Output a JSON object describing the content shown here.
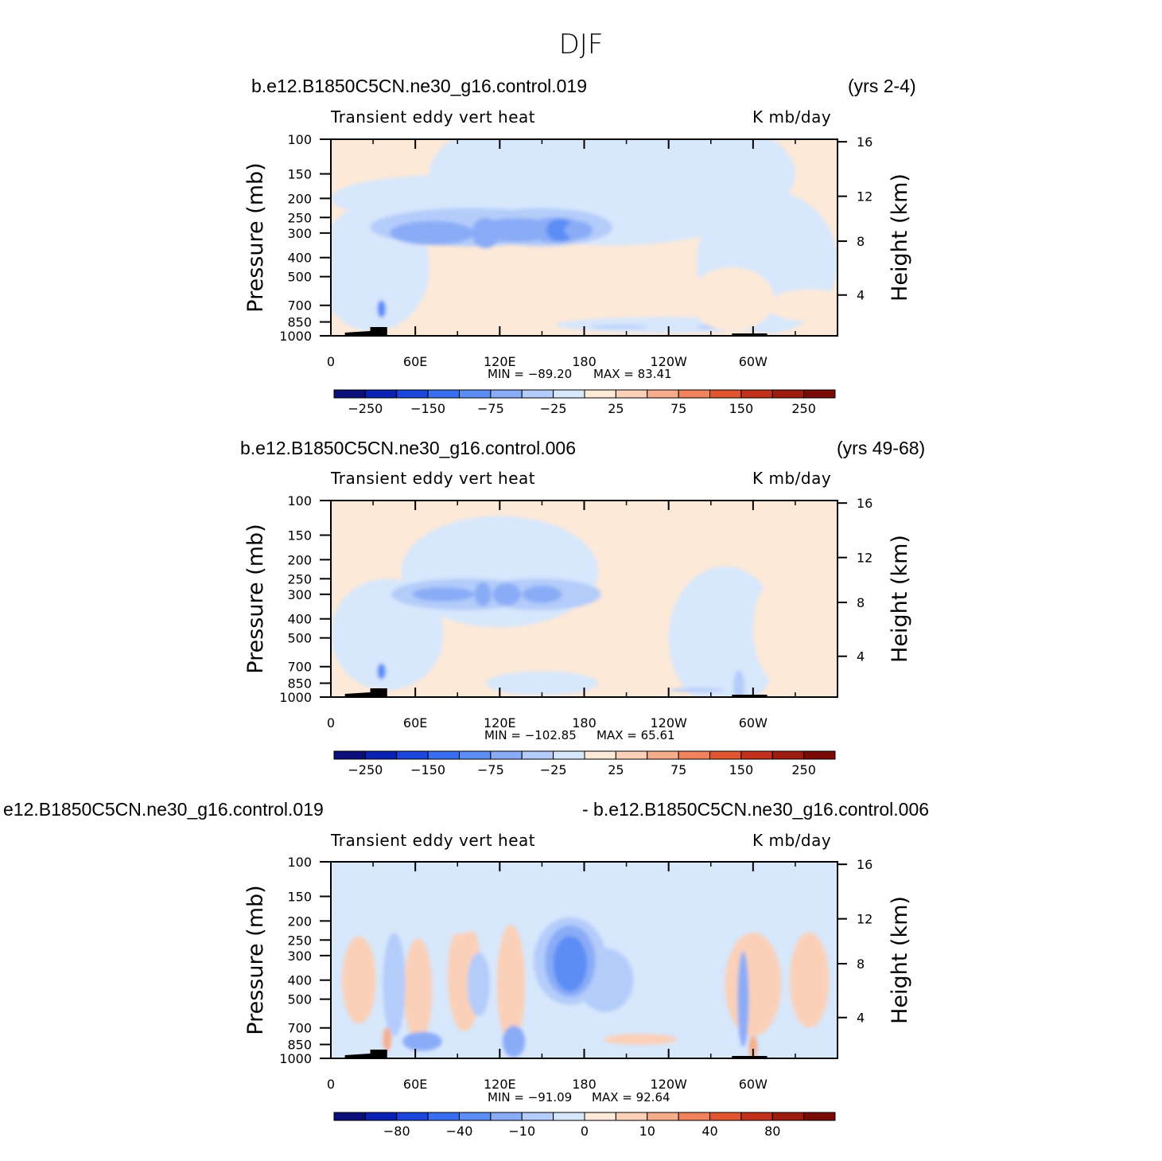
{
  "title": "DJF",
  "panels": [
    {
      "case_left": "b.e12.B1850C5CN.ne30_g16.control.019",
      "case_right": "(yrs 2-4)",
      "left_string": "Transient  eddy  vert  heat",
      "right_string": "K  mb/day",
      "min_text": "MIN  =  −89.20",
      "max_text": "MAX  =   83.41"
    },
    {
      "case_left": "b.e12.B1850C5CN.ne30_g16.control.006",
      "case_right": "(yrs 49-68)",
      "left_string": "Transient  eddy  vert  heat",
      "right_string": "K  mb/day",
      "min_text": "MIN  =  −102.85",
      "max_text": "MAX  =   65.61"
    },
    {
      "case_left": "e12.B1850C5CN.ne30_g16.control.019",
      "case_right": "- b.e12.B1850C5CN.ne30_g16.control.006",
      "left_string": "Transient  eddy  vert  heat",
      "right_string": "K  mb/day",
      "min_text": "MIN  =  −91.09",
      "max_text": "MAX  =   92.64"
    }
  ],
  "chart_data": [
    {
      "type": "heatmap",
      "title": "b.e12.B1850C5CN.ne30_g16.control.019 (yrs 2-4)",
      "variable": "Transient eddy vert heat",
      "units": "K mb/day",
      "ylabel": "Pressure (mb)",
      "ylabel_right": "Height (km)",
      "x_ticks": [
        "0",
        "60E",
        "120E",
        "180",
        "120W",
        "60W"
      ],
      "y_ticks": [
        "100",
        "150",
        "200",
        "250",
        "300",
        "400",
        "500",
        "700",
        "850",
        "1000"
      ],
      "y_right_ticks": [
        "16",
        "12",
        "8",
        "4"
      ],
      "colorbar_labels": [
        "−250",
        "−150",
        "−75",
        "−25",
        "25",
        "75",
        "150",
        "250"
      ],
      "levels": [
        -250,
        -200,
        -150,
        -100,
        -75,
        -50,
        -25,
        0,
        25,
        50,
        75,
        100,
        150,
        200,
        250
      ],
      "min": -89.2,
      "max": 83.41
    },
    {
      "type": "heatmap",
      "title": "b.e12.B1850C5CN.ne30_g16.control.006 (yrs 49-68)",
      "variable": "Transient eddy vert heat",
      "units": "K mb/day",
      "ylabel": "Pressure (mb)",
      "ylabel_right": "Height (km)",
      "x_ticks": [
        "0",
        "60E",
        "120E",
        "180",
        "120W",
        "60W"
      ],
      "y_ticks": [
        "100",
        "150",
        "200",
        "250",
        "300",
        "400",
        "500",
        "700",
        "850",
        "1000"
      ],
      "y_right_ticks": [
        "16",
        "12",
        "8",
        "4"
      ],
      "colorbar_labels": [
        "−250",
        "−150",
        "−75",
        "−25",
        "25",
        "75",
        "150",
        "250"
      ],
      "levels": [
        -250,
        -200,
        -150,
        -100,
        -75,
        -50,
        -25,
        0,
        25,
        50,
        75,
        100,
        150,
        200,
        250
      ],
      "min": -102.85,
      "max": 65.61
    },
    {
      "type": "heatmap",
      "title": "e12.B1850C5CN.ne30_g16.control.019 - b.e12.B1850C5CN.ne30_g16.control.006",
      "variable": "Transient eddy vert heat",
      "units": "K mb/day",
      "ylabel": "Pressure (mb)",
      "ylabel_right": "Height (km)",
      "x_ticks": [
        "0",
        "60E",
        "120E",
        "180",
        "120W",
        "60W"
      ],
      "y_ticks": [
        "100",
        "150",
        "200",
        "250",
        "300",
        "400",
        "500",
        "700",
        "850",
        "1000"
      ],
      "y_right_ticks": [
        "16",
        "12",
        "8",
        "4"
      ],
      "colorbar_labels": [
        "−80",
        "−40",
        "−10",
        "0",
        "10",
        "40",
        "80"
      ],
      "levels": [
        -100,
        -80,
        -60,
        -40,
        -20,
        -10,
        -5,
        0,
        5,
        10,
        20,
        40,
        60,
        80,
        100
      ],
      "min": -91.09,
      "max": 92.64
    }
  ],
  "palette": [
    "#0a0f7a",
    "#0a22b4",
    "#1d46dc",
    "#3a6ef0",
    "#5b8df5",
    "#8aacf7",
    "#b4ccfa",
    "#d7e7fc",
    "#fde9d8",
    "#fbd0b8",
    "#f7ad8c",
    "#f1825e",
    "#e15430",
    "#c1311b",
    "#9e1b0f",
    "#7a0a06"
  ]
}
